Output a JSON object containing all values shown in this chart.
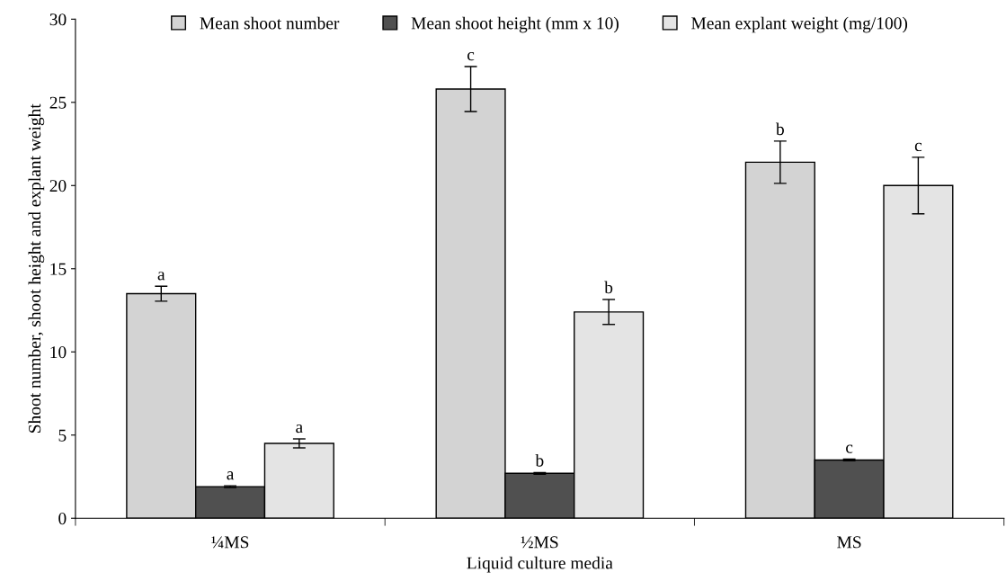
{
  "chart_data": {
    "type": "bar",
    "xlabel": "Liquid culture media",
    "ylabel": "Shoot number, shoot height and explant weight",
    "categories": [
      "¼MS",
      "½MS",
      "MS"
    ],
    "series": [
      {
        "name": "Mean shoot number",
        "color": "#d3d3d3",
        "values": [
          13.5,
          25.8,
          21.4
        ],
        "errors": [
          0.45,
          1.35,
          1.27
        ],
        "value_labels": [
          "a",
          "c",
          "b"
        ]
      },
      {
        "name": "Mean shoot height (mm x 10)",
        "color": "#505050",
        "values": [
          1.9,
          2.7,
          3.5
        ],
        "errors": [
          0.05,
          0.05,
          0.05
        ],
        "value_labels": [
          "a",
          "b",
          "c"
        ]
      },
      {
        "name": "Mean explant weight (mg/100)",
        "color": "#e4e4e4",
        "values": [
          4.5,
          12.4,
          20.0
        ],
        "errors": [
          0.27,
          0.75,
          1.7
        ],
        "value_labels": [
          "a",
          "b",
          "c"
        ]
      }
    ],
    "ylim": [
      0,
      30
    ],
    "yticks": [
      0,
      5,
      10,
      15,
      20,
      25,
      30
    ],
    "grid": false,
    "legend": "top"
  }
}
